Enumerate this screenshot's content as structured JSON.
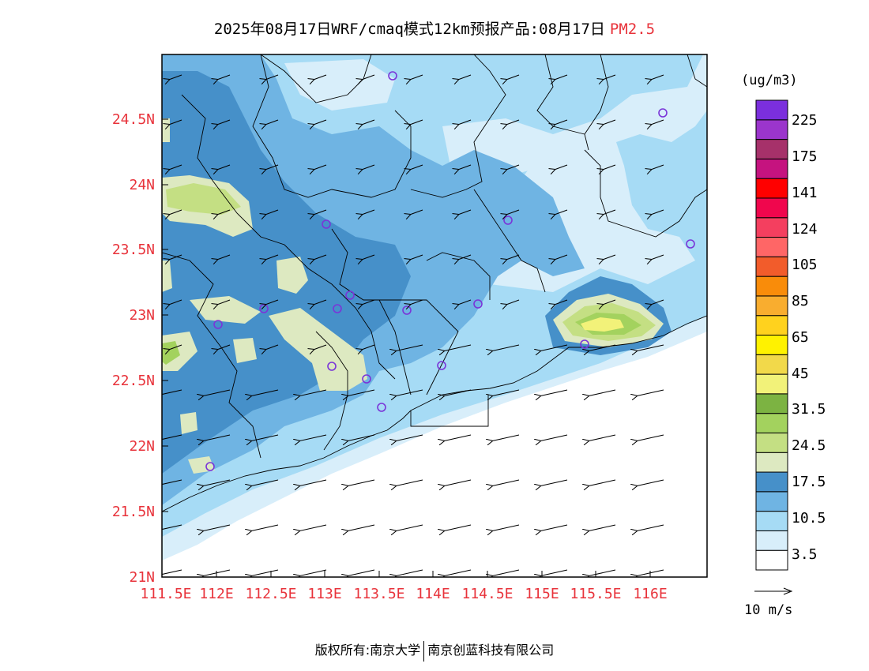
{
  "title": {
    "main": "2025年08月17日WRF/cmaq模式12km预报产品:08月17日",
    "pollutant": "PM2.5"
  },
  "colorbar": {
    "unit": "(ug/m3)",
    "colors": [
      "#ffffff",
      "#d8eefa",
      "#a6dbf5",
      "#6fb4e3",
      "#4690c9",
      "#dde9c1",
      "#c4df83",
      "#a3d25e",
      "#7cb342",
      "#f2f279",
      "#f2d94a",
      "#fff200",
      "#ffd21e",
      "#f9ad2f",
      "#f98c0a",
      "#f25c2b",
      "#ff6666",
      "#f43f5f",
      "#f0064d",
      "#ff0000",
      "#c5137f",
      "#a6316a",
      "#9b35cc",
      "#7b2fdd"
    ],
    "labels": [
      "3.5",
      "10.5",
      "17.5",
      "24.5",
      "31.5",
      "45",
      "65",
      "85",
      "105",
      "124",
      "141",
      "175",
      "225"
    ]
  },
  "map": {
    "lon_labels": [
      "111.5E",
      "112E",
      "112.5E",
      "113E",
      "113.5E",
      "114E",
      "114.5E",
      "115E",
      "115.5E",
      "116E"
    ],
    "lat_labels": [
      "21N",
      "21.5N",
      "22N",
      "22.5N",
      "23N",
      "23.5N",
      "24N",
      "24.5N"
    ],
    "label_color": "#e8333b"
  },
  "wind_legend": {
    "label": "10 m/s"
  },
  "footer": {
    "left": "版权所有:南京大学",
    "right": "南京创蓝科技有限公司"
  }
}
